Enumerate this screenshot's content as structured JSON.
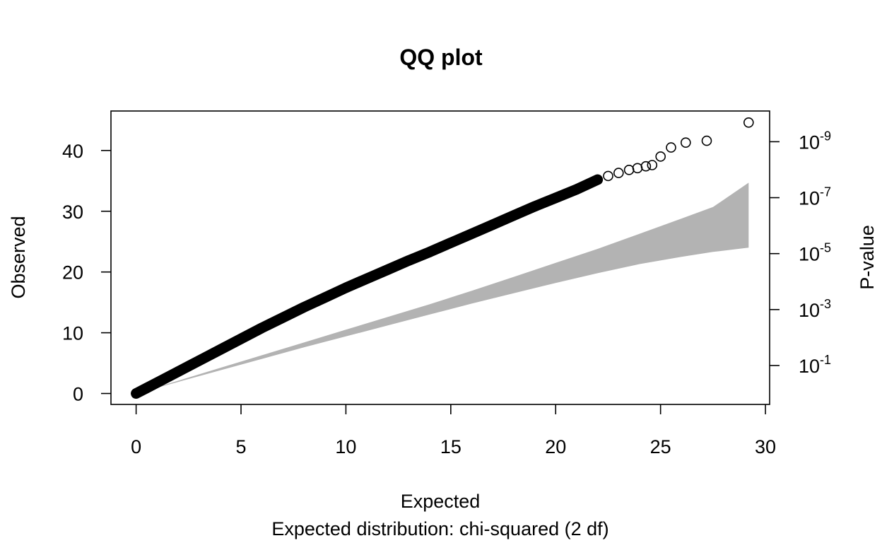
{
  "chart_data": {
    "type": "scatter",
    "title": "QQ plot",
    "xlabel": "Expected",
    "subtitle": "Expected distribution: chi-squared (2 df)",
    "ylabel": "Observed",
    "y2label": "P-value",
    "xlim": [
      -1.2,
      30.2
    ],
    "ylim": [
      -1.8,
      46.5
    ],
    "x_ticks": [
      0,
      5,
      10,
      15,
      20,
      25,
      30
    ],
    "x_tick_labels": [
      "0",
      "5",
      "10",
      "15",
      "20",
      "25",
      "30"
    ],
    "y_ticks": [
      0,
      10,
      20,
      30,
      40
    ],
    "y_tick_labels": [
      "0",
      "10",
      "20",
      "30",
      "40"
    ],
    "y2_ticks": [
      {
        "value": 4.605,
        "base": "10",
        "exp": "-1"
      },
      {
        "value": 13.816,
        "base": "10",
        "exp": "-3"
      },
      {
        "value": 23.026,
        "base": "10",
        "exp": "-5"
      },
      {
        "value": 32.236,
        "base": "10",
        "exp": "-7"
      },
      {
        "value": 41.447,
        "base": "10",
        "exp": "-9"
      }
    ],
    "grid": false,
    "series": [
      {
        "marker": "open-circle",
        "points": [
          [
            0.0,
            0.0
          ],
          [
            0.5,
            0.9
          ],
          [
            1.0,
            1.8
          ],
          [
            2.0,
            3.6
          ],
          [
            3.0,
            5.4
          ],
          [
            4.0,
            7.2
          ],
          [
            5.0,
            9.0
          ],
          [
            6.0,
            10.8
          ],
          [
            7.0,
            12.5
          ],
          [
            8.0,
            14.2
          ],
          [
            9.0,
            15.8
          ],
          [
            10.0,
            17.4
          ],
          [
            11.0,
            18.9
          ],
          [
            12.0,
            20.4
          ],
          [
            13.0,
            21.9
          ],
          [
            14.0,
            23.3
          ],
          [
            15.0,
            24.8
          ],
          [
            16.0,
            26.3
          ],
          [
            17.0,
            27.8
          ],
          [
            18.0,
            29.3
          ],
          [
            19.0,
            30.8
          ],
          [
            20.0,
            32.2
          ],
          [
            21.0,
            33.6
          ],
          [
            22.0,
            35.2
          ],
          [
            22.5,
            35.8
          ],
          [
            23.0,
            36.3
          ],
          [
            23.5,
            36.8
          ],
          [
            23.9,
            37.1
          ],
          [
            24.3,
            37.4
          ],
          [
            24.6,
            37.6
          ],
          [
            25.0,
            39.0
          ],
          [
            25.5,
            40.5
          ],
          [
            26.2,
            41.3
          ],
          [
            27.2,
            41.6
          ],
          [
            29.2,
            44.6
          ]
        ]
      }
    ],
    "confidence_band": {
      "x": [
        0,
        2,
        4,
        6,
        8,
        10,
        12,
        14,
        16,
        18,
        20,
        22,
        24,
        26,
        27.5,
        29.2
      ],
      "lower": [
        0,
        1.9,
        3.8,
        5.7,
        7.6,
        9.4,
        11.2,
        13.0,
        14.8,
        16.5,
        18.2,
        19.8,
        21.3,
        22.5,
        23.3,
        24.0
      ],
      "upper": [
        0,
        2.1,
        4.2,
        6.3,
        8.4,
        10.5,
        12.6,
        14.7,
        16.9,
        19.2,
        21.5,
        23.8,
        26.3,
        28.8,
        30.7,
        34.7
      ],
      "color": "#b3b3b3"
    }
  }
}
